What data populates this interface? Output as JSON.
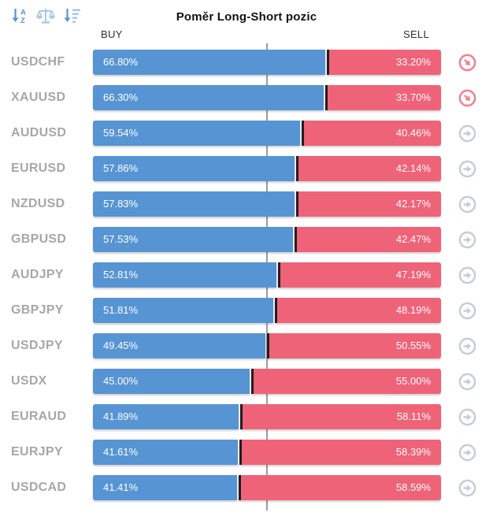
{
  "header": {
    "title": "Poměr Long-Short pozic",
    "buy_label": "BUY",
    "sell_label": "SELL",
    "toolbar": [
      {
        "icon": "sort-alphabetical-icon"
      },
      {
        "icon": "balance-scale-icon"
      },
      {
        "icon": "sort-amount-descending-icon"
      }
    ]
  },
  "colors": {
    "buy_blue": "#5794d3",
    "sell_red": "#ef6379",
    "divider_dark": "#241c20",
    "midline_gray": "#9b9b9b",
    "pair_gray": "#a7a7a7",
    "icon_gray": "#c5cdd9",
    "icon_red": "#f2808f",
    "toolbar_blue": "#5e93cc",
    "toolbar_blue_light": "#abc8e6"
  },
  "chart_data": {
    "type": "bar",
    "orientation": "horizontal-stacked",
    "title": "Poměr Long-Short pozic",
    "categories": [
      "USDCHF",
      "XAUUSD",
      "AUDUSD",
      "EURUSD",
      "NZDUSD",
      "GBPUSD",
      "AUDJPY",
      "GBPJPY",
      "USDJPY",
      "USDX",
      "EURAUD",
      "EURJPY",
      "USDCAD"
    ],
    "series": [
      {
        "name": "BUY",
        "color": "#5794d3",
        "values": [
          66.8,
          66.3,
          59.54,
          57.86,
          57.83,
          57.53,
          52.81,
          51.81,
          49.45,
          45.0,
          41.89,
          41.61,
          41.41
        ]
      },
      {
        "name": "SELL",
        "color": "#ef6379",
        "values": [
          33.2,
          33.7,
          40.46,
          42.14,
          42.17,
          42.47,
          47.19,
          48.19,
          50.55,
          55.0,
          58.11,
          58.39,
          58.59
        ]
      }
    ],
    "value_format": "percent",
    "xlim": [
      0,
      100
    ],
    "midline": 50,
    "grid": false,
    "legend_position": "top (BUY left, SELL right)"
  },
  "rows": [
    {
      "pair": "USDCHF",
      "buy_label": "66.80%",
      "sell_label": "33.20%",
      "buy_pct": 66.8,
      "trend": "down"
    },
    {
      "pair": "XAUUSD",
      "buy_label": "66.30%",
      "sell_label": "33.70%",
      "buy_pct": 66.3,
      "trend": "down"
    },
    {
      "pair": "AUDUSD",
      "buy_label": "59.54%",
      "sell_label": "40.46%",
      "buy_pct": 59.54,
      "trend": "flat"
    },
    {
      "pair": "EURUSD",
      "buy_label": "57.86%",
      "sell_label": "42.14%",
      "buy_pct": 57.86,
      "trend": "flat"
    },
    {
      "pair": "NZDUSD",
      "buy_label": "57.83%",
      "sell_label": "42.17%",
      "buy_pct": 57.83,
      "trend": "flat"
    },
    {
      "pair": "GBPUSD",
      "buy_label": "57.53%",
      "sell_label": "42.47%",
      "buy_pct": 57.53,
      "trend": "flat"
    },
    {
      "pair": "AUDJPY",
      "buy_label": "52.81%",
      "sell_label": "47.19%",
      "buy_pct": 52.81,
      "trend": "flat"
    },
    {
      "pair": "GBPJPY",
      "buy_label": "51.81%",
      "sell_label": "48.19%",
      "buy_pct": 51.81,
      "trend": "flat"
    },
    {
      "pair": "USDJPY",
      "buy_label": "49.45%",
      "sell_label": "50.55%",
      "buy_pct": 49.45,
      "trend": "flat"
    },
    {
      "pair": "USDX",
      "buy_label": "45.00%",
      "sell_label": "55.00%",
      "buy_pct": 45.0,
      "trend": "flat"
    },
    {
      "pair": "EURAUD",
      "buy_label": "41.89%",
      "sell_label": "58.11%",
      "buy_pct": 41.89,
      "trend": "flat"
    },
    {
      "pair": "EURJPY",
      "buy_label": "41.61%",
      "sell_label": "58.39%",
      "buy_pct": 41.61,
      "trend": "flat"
    },
    {
      "pair": "USDCAD",
      "buy_label": "41.41%",
      "sell_label": "58.59%",
      "buy_pct": 41.41,
      "trend": "flat"
    }
  ]
}
